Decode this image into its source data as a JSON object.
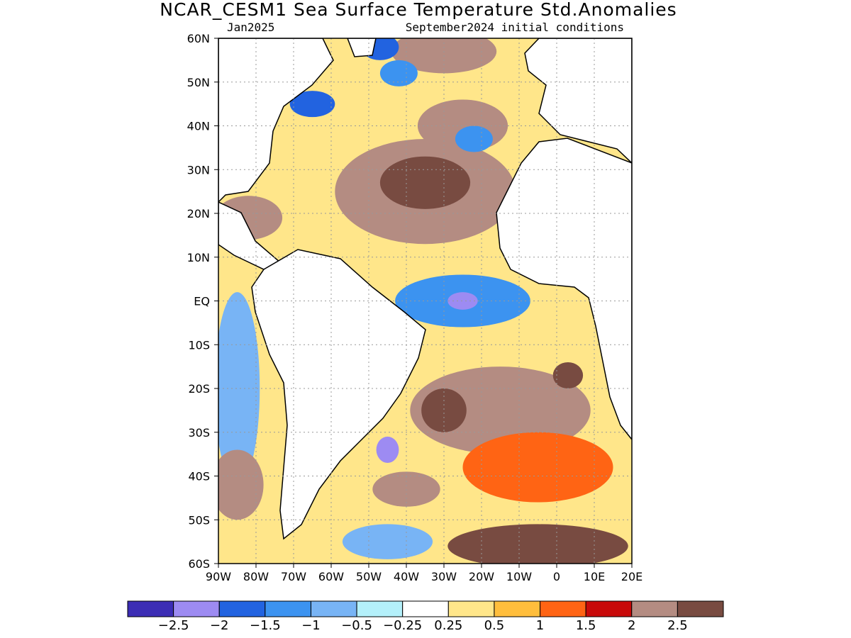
{
  "chart_data": {
    "type": "heatmap",
    "title": "NCAR_CESM1 Sea Surface Temperature Std.Anomalies",
    "subtitle_left": "Jan2025",
    "subtitle_right": "September2024 initial conditions",
    "x_ticks": [
      "90W",
      "80W",
      "70W",
      "60W",
      "50W",
      "40W",
      "30W",
      "20W",
      "10W",
      "0",
      "10E",
      "20E"
    ],
    "y_ticks": [
      "60N",
      "50N",
      "40N",
      "30N",
      "20N",
      "10N",
      "EQ",
      "10S",
      "20S",
      "30S",
      "40S",
      "50S",
      "60S"
    ],
    "xlim": [
      -90,
      20
    ],
    "ylim": [
      -60,
      60
    ],
    "grid": true,
    "colorbar": {
      "colors": [
        "#3c2db5",
        "#9d8bf2",
        "#2263e0",
        "#3c93f0",
        "#78b4f5",
        "#b4f0fa",
        "#ffffff",
        "#ffe68a",
        "#ffbe3c",
        "#ff6414",
        "#c80a0a",
        "#b48c82",
        "#784b41"
      ],
      "labels": [
        "−2.5",
        "−2",
        "−1.5",
        "−1",
        "−0.5",
        "−0.25",
        "0.25",
        "0.5",
        "1",
        "1.5",
        "2",
        "2.5"
      ]
    },
    "anomaly_regions": [
      {
        "lon": -35,
        "lat": 25,
        "value": 2.0,
        "rx": 24,
        "ry": 12
      },
      {
        "lon": -35,
        "lat": 27,
        "value": 2.5,
        "rx": 12,
        "ry": 6
      },
      {
        "lon": -25,
        "lat": 40,
        "value": 2.2,
        "rx": 12,
        "ry": 6
      },
      {
        "lon": -30,
        "lat": 57,
        "value": 2.2,
        "rx": 14,
        "ry": 5
      },
      {
        "lon": -65,
        "lat": 45,
        "value": -1.8,
        "rx": 6,
        "ry": 3
      },
      {
        "lon": -42,
        "lat": 52,
        "value": -1.5,
        "rx": 5,
        "ry": 3
      },
      {
        "lon": -47,
        "lat": 58,
        "value": -1.6,
        "rx": 5,
        "ry": 3
      },
      {
        "lon": -22,
        "lat": 37,
        "value": -1.2,
        "rx": 5,
        "ry": 3
      },
      {
        "lon": -82,
        "lat": 19,
        "value": 2.2,
        "rx": 9,
        "ry": 5
      },
      {
        "lon": -25,
        "lat": 0,
        "value": -1.5,
        "rx": 18,
        "ry": 6
      },
      {
        "lon": -25,
        "lat": 0,
        "value": -2.2,
        "rx": 4,
        "ry": 2
      },
      {
        "lon": -85,
        "lat": -20,
        "value": -0.9,
        "rx": 6,
        "ry": 22
      },
      {
        "lon": -15,
        "lat": -25,
        "value": 2.0,
        "rx": 24,
        "ry": 10
      },
      {
        "lon": -30,
        "lat": -25,
        "value": 2.5,
        "rx": 6,
        "ry": 5
      },
      {
        "lon": 3,
        "lat": -17,
        "value": 2.5,
        "rx": 4,
        "ry": 3
      },
      {
        "lon": -45,
        "lat": -34,
        "value": -2.4,
        "rx": 3,
        "ry": 3
      },
      {
        "lon": -40,
        "lat": -43,
        "value": 2.4,
        "rx": 9,
        "ry": 4
      },
      {
        "lon": -85,
        "lat": -42,
        "value": 2.2,
        "rx": 7,
        "ry": 8
      },
      {
        "lon": -5,
        "lat": -56,
        "value": 2.7,
        "rx": 24,
        "ry": 5
      },
      {
        "lon": -45,
        "lat": -55,
        "value": -0.9,
        "rx": 12,
        "ry": 4
      },
      {
        "lon": -5,
        "lat": -38,
        "value": 1.4,
        "rx": 20,
        "ry": 8
      }
    ]
  }
}
